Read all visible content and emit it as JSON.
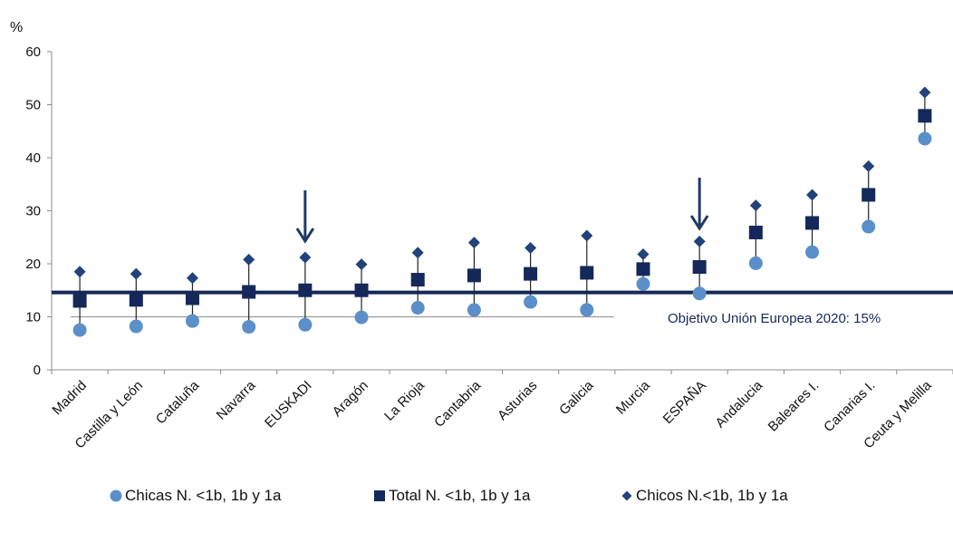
{
  "chart_data": {
    "type": "scatter",
    "y_unit_label": "%",
    "ylim": [
      0,
      60
    ],
    "y_ticks": [
      0,
      10,
      20,
      30,
      40,
      50,
      60
    ],
    "categories": [
      "Madrid",
      "Castilla y León",
      "Cataluña",
      "Navarra",
      "EUSKADI",
      "Aragón",
      "La Rioja",
      "Cantabria",
      "Asturias",
      "Galicia",
      "Murcia",
      "ESPAÑA",
      "Andalucia",
      "Baleares I.",
      "Canarias I.",
      "Ceuta y Melilla"
    ],
    "series": [
      {
        "name": "Chicas N. <1b, 1b y 1a",
        "marker": "circle",
        "color": "#5b8fc9",
        "values": [
          7.5,
          8.2,
          9.2,
          8.1,
          8.5,
          9.9,
          11.7,
          11.3,
          12.8,
          11.3,
          16.2,
          14.4,
          20.1,
          22.2,
          27.0,
          43.6
        ]
      },
      {
        "name": "Total N. <1b, 1b y 1a",
        "marker": "square",
        "color": "#14285a",
        "values": [
          13.0,
          13.2,
          13.5,
          14.7,
          15.0,
          15.0,
          17.0,
          17.8,
          18.1,
          18.3,
          19.0,
          19.4,
          25.9,
          27.7,
          33.0,
          47.9
        ]
      },
      {
        "name": "Chicos N.<1b, 1b y 1a",
        "marker": "diamond",
        "color": "#22427a",
        "values": [
          18.5,
          18.1,
          17.3,
          20.8,
          21.2,
          19.9,
          22.1,
          24.0,
          23.0,
          25.3,
          21.8,
          24.2,
          31.0,
          33.0,
          38.4,
          52.3
        ]
      }
    ],
    "reference_line": {
      "value": 14.6,
      "label": "Objetivo Unión Europea 2020: 15%",
      "color": "#14285a"
    },
    "secondary_line": {
      "value": 10,
      "from_category": "Madrid",
      "to_category": "Galicia"
    },
    "highlight_arrows": [
      "EUSKADI",
      "ESPAÑA"
    ],
    "legend_position": "bottom",
    "grid": false
  }
}
